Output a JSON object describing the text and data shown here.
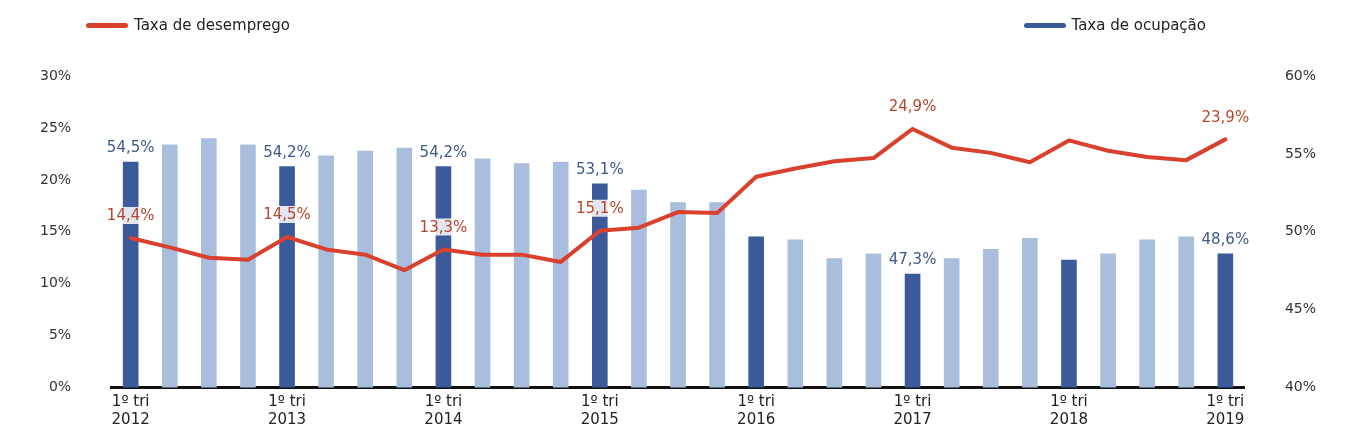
{
  "chart_data": {
    "type": "bar",
    "legend": "top",
    "grid": false,
    "categories": [
      "1º tri\n2012",
      null,
      null,
      null,
      "1º tri\n2013",
      null,
      null,
      null,
      "1º tri\n2014",
      null,
      null,
      null,
      "1º tri\n2015",
      null,
      null,
      null,
      "1º tri\n2016",
      null,
      null,
      null,
      "1º tri\n2017",
      null,
      null,
      null,
      "1º tri\n2018",
      null,
      null,
      null,
      "1º tri\n2019"
    ],
    "ylim": [
      0,
      30
    ],
    "yticks": [
      {
        "value": 0,
        "label": "0%"
      },
      {
        "value": 5,
        "label": "5%"
      },
      {
        "value": 10,
        "label": "10%"
      },
      {
        "value": 15,
        "label": "15%"
      },
      {
        "value": 20,
        "label": "20%"
      },
      {
        "value": 25,
        "label": "25%"
      },
      {
        "value": 30,
        "label": "30%"
      }
    ],
    "y2lim": [
      40,
      60
    ],
    "y2ticks": [
      {
        "value": 40,
        "label": "40%"
      },
      {
        "value": 45,
        "label": "45%"
      },
      {
        "value": 50,
        "label": "50%"
      },
      {
        "value": 55,
        "label": "55%"
      },
      {
        "value": 60,
        "label": "60%"
      }
    ],
    "series": [
      {
        "name": "Taxa de desemprego",
        "type": "line",
        "color": "#d9412e",
        "values": [
          14.4,
          13.5,
          12.5,
          12.3,
          14.5,
          13.3,
          12.8,
          11.3,
          13.3,
          12.8,
          12.8,
          12.1,
          15.1,
          15.4,
          16.9,
          16.8,
          20.3,
          21.1,
          21.8,
          22.1,
          24.9,
          23.1,
          22.6,
          21.7,
          23.8,
          22.8,
          22.2,
          21.9,
          23.9
        ],
        "value_labels": [
          "14,4%",
          null,
          null,
          null,
          "14,5%",
          null,
          null,
          null,
          "13,3%",
          null,
          null,
          null,
          "15,1%",
          null,
          null,
          null,
          null,
          null,
          null,
          null,
          "24,9%",
          null,
          null,
          null,
          null,
          null,
          null,
          null,
          "23,9%"
        ]
      },
      {
        "name": "Taxa de ocupação",
        "axis": "y2",
        "color": "#3a5a9a",
        "colors": [
          "#3a5a9a",
          "#a9bddd",
          "#a9bddd",
          "#a9bddd",
          "#3a5a9a",
          "#a9bddd",
          "#a9bddd",
          "#a9bddd",
          "#3a5a9a",
          "#a9bddd",
          "#a9bddd",
          "#a9bddd",
          "#3a5a9a",
          "#a9bddd",
          "#a9bddd",
          "#a9bddd",
          "#3a5a9a",
          "#a9bddd",
          "#a9bddd",
          "#a9bddd",
          "#3a5a9a",
          "#a9bddd",
          "#a9bddd",
          "#a9bddd",
          "#3a5a9a",
          "#a9bddd",
          "#a9bddd",
          "#a9bddd",
          "#3a5a9a"
        ],
        "values": [
          54.5,
          55.6,
          56.0,
          55.6,
          54.2,
          54.9,
          55.2,
          55.4,
          54.2,
          54.7,
          54.4,
          54.5,
          53.1,
          52.7,
          51.9,
          51.9,
          49.7,
          49.5,
          48.3,
          48.6,
          47.3,
          48.3,
          48.9,
          49.6,
          48.2,
          48.6,
          49.5,
          49.7,
          48.6
        ],
        "value_labels": [
          "54,5%",
          null,
          null,
          null,
          "54,2%",
          null,
          null,
          null,
          "54,2%",
          null,
          null,
          null,
          "53,1%",
          null,
          null,
          null,
          null,
          null,
          null,
          null,
          "47,3%",
          null,
          null,
          null,
          null,
          null,
          null,
          null,
          "48,6%"
        ]
      }
    ]
  }
}
